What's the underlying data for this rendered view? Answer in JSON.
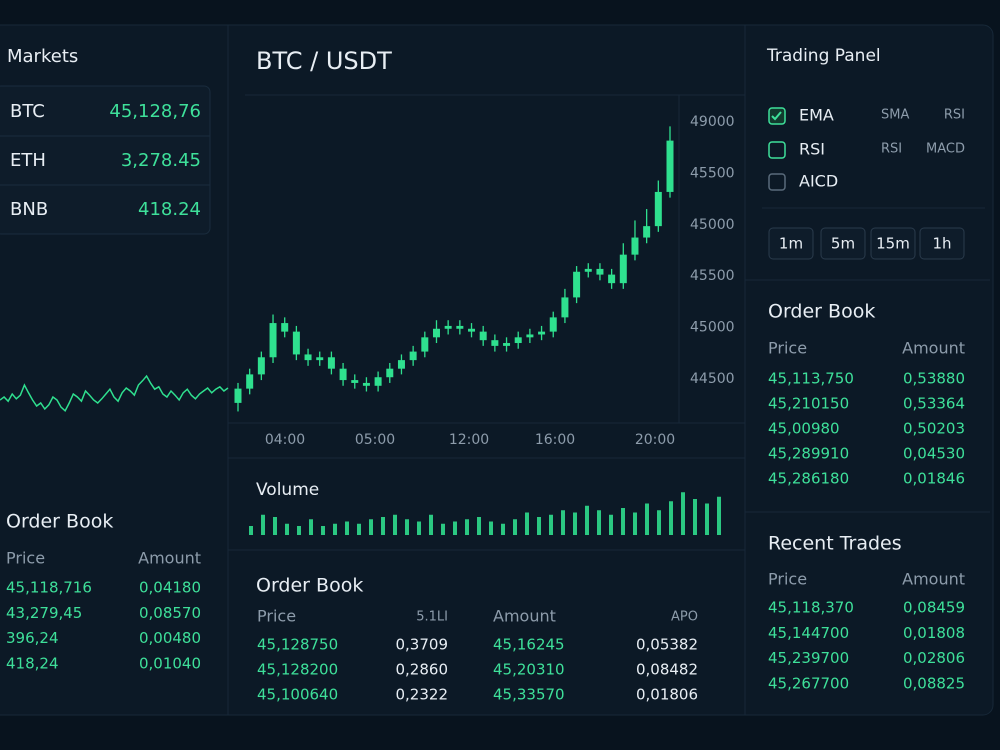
{
  "markets": {
    "title": "Markets",
    "rows": [
      {
        "symbol": "BTC",
        "price": "45,128,76"
      },
      {
        "symbol": "ETH",
        "price": "3,278.45"
      },
      {
        "symbol": "BNB",
        "price": "418.24"
      }
    ]
  },
  "sparkline": {
    "ylim": [
      0,
      100
    ],
    "values": [
      30,
      35,
      28,
      40,
      32,
      38,
      55,
      42,
      30,
      20,
      25,
      15,
      22,
      35,
      30,
      18,
      12,
      25,
      40,
      35,
      28,
      45,
      38,
      30,
      25,
      32,
      40,
      48,
      35,
      28,
      42,
      50,
      45,
      38,
      55,
      62,
      70,
      58,
      48,
      52,
      40,
      35,
      45,
      38,
      30,
      42,
      48,
      38,
      32,
      40,
      45,
      50,
      42,
      48,
      52,
      45,
      50
    ]
  },
  "left_order_book": {
    "title": "Order Book",
    "columns": [
      "Price",
      "Amount"
    ],
    "rows": [
      [
        "45,118,716",
        "0,04180"
      ],
      [
        "43,279,45",
        "0,08570"
      ],
      [
        "396,24",
        "0,00480"
      ],
      [
        "418,24",
        "0,01040"
      ]
    ]
  },
  "chart_data": {
    "type": "candlestick",
    "title": "BTC / USDT",
    "color": "#2fe08f",
    "ylim": [
      43800,
      49500
    ],
    "y_labels": [
      "49000",
      "45500",
      "45000",
      "45500",
      "45000",
      "44500"
    ],
    "x_labels": [
      "04:00",
      "05:00",
      "12:00",
      "16:00",
      "20:00"
    ],
    "open": [
      44100,
      44350,
      44600,
      44900,
      45500,
      45350,
      44950,
      44850,
      44900,
      44700,
      44500,
      44450,
      44400,
      44550,
      44700,
      44850,
      45000,
      45250,
      45400,
      45450,
      45400,
      45350,
      45200,
      45100,
      45150,
      45250,
      45300,
      45350,
      45600,
      45950,
      46400,
      46450,
      46350,
      46200,
      46700,
      47000,
      47200,
      47800
    ],
    "high": [
      44450,
      44700,
      45000,
      45650,
      45600,
      45450,
      45050,
      45000,
      45000,
      44800,
      44600,
      44550,
      44650,
      44800,
      44950,
      45100,
      45350,
      45550,
      45550,
      45550,
      45500,
      45450,
      45300,
      45250,
      45350,
      45400,
      45450,
      45700,
      46100,
      46500,
      46550,
      46550,
      46450,
      46900,
      47300,
      47500,
      48000,
      48950
    ],
    "low": [
      43950,
      44250,
      44500,
      44800,
      45250,
      44850,
      44750,
      44750,
      44600,
      44400,
      44350,
      44300,
      44300,
      44450,
      44600,
      44750,
      44900,
      45150,
      45300,
      45300,
      45250,
      45100,
      45000,
      45000,
      45050,
      45150,
      45200,
      45250,
      45500,
      45850,
      46300,
      46250,
      46100,
      46100,
      46600,
      46900,
      47100,
      47700
    ],
    "close": [
      44350,
      44600,
      44900,
      45500,
      45350,
      44950,
      44850,
      44900,
      44700,
      44500,
      44450,
      44400,
      44550,
      44700,
      44850,
      45000,
      45250,
      45400,
      45450,
      45400,
      45350,
      45200,
      45100,
      45150,
      45250,
      45300,
      45350,
      45600,
      45950,
      46400,
      46450,
      46350,
      46200,
      46700,
      47000,
      47200,
      47800,
      48700
    ]
  },
  "volume": {
    "title": "Volume",
    "ylim": [
      0,
      100
    ],
    "values": [
      20,
      45,
      40,
      25,
      20,
      35,
      20,
      25,
      30,
      25,
      35,
      40,
      45,
      35,
      30,
      45,
      25,
      30,
      35,
      40,
      30,
      25,
      35,
      50,
      40,
      45,
      55,
      50,
      65,
      55,
      45,
      60,
      50,
      70,
      55,
      75,
      95,
      80,
      70,
      85
    ]
  },
  "center_order_book": {
    "title": "Order Book",
    "columns": [
      "Price",
      "5.1LI",
      "Amount",
      "APO"
    ],
    "rows": [
      [
        "45,128750",
        "0,3709",
        "45,16245",
        "0,05382"
      ],
      [
        "45,128200",
        "0,2860",
        "45,20310",
        "0,08482"
      ],
      [
        "45,100640",
        "0,2322",
        "45,33570",
        "0,01806"
      ]
    ]
  },
  "trading_panel": {
    "title": "Trading Panel",
    "indicators": [
      {
        "name": "EMA",
        "state": "checked",
        "options": [
          "SMA",
          "RSI"
        ]
      },
      {
        "name": "RSI",
        "state": "focused",
        "options": [
          "RSI",
          "MACD"
        ]
      },
      {
        "name": "AICD",
        "state": "unchecked",
        "options": []
      }
    ],
    "intervals": [
      "1m",
      "5m",
      "15m",
      "1h"
    ]
  },
  "right_order_book": {
    "title": "Order Book",
    "columns": [
      "Price",
      "Amount"
    ],
    "rows": [
      [
        "45,113,750",
        "0,53880"
      ],
      [
        "45,210150",
        "0,53364"
      ],
      [
        "45,00980",
        "0,50203"
      ],
      [
        "45,289910",
        "0,04530"
      ],
      [
        "45,286180",
        "0,01846"
      ]
    ]
  },
  "recent_trades": {
    "title": "Recent Trades",
    "columns": [
      "Price",
      "Amount"
    ],
    "rows": [
      [
        "45,118,370",
        "0,08459"
      ],
      [
        "45,144700",
        "0,01808"
      ],
      [
        "45,239700",
        "0,02806"
      ],
      [
        "45,267700",
        "0,08825"
      ]
    ]
  }
}
